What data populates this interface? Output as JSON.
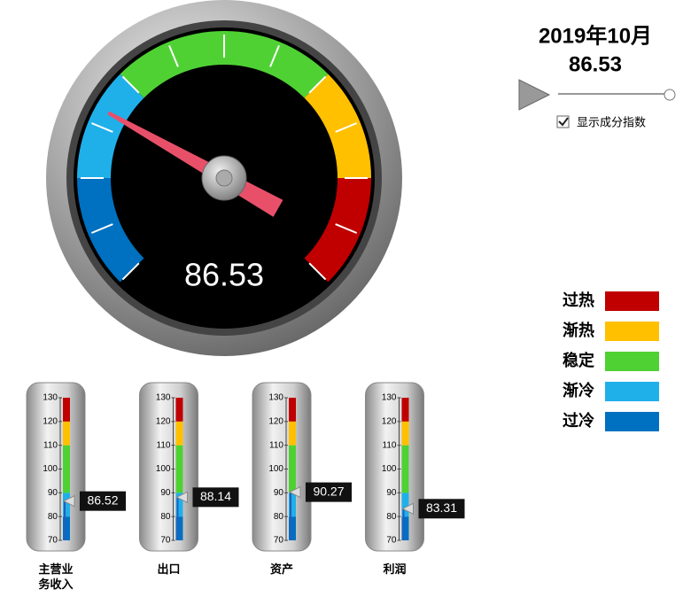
{
  "date": "2019年10月",
  "show_components": true,
  "checkbox_label": "显示成分指数",
  "gauge": {
    "value": 86.53,
    "min": 70,
    "max": 130,
    "ticks": [
      70,
      75,
      80,
      85,
      90,
      95,
      100,
      105,
      110,
      115,
      120,
      125,
      130
    ],
    "bands": [
      {
        "name": "过冷",
        "color": "#0070c0",
        "from": 70,
        "to": 80
      },
      {
        "name": "渐冷",
        "color": "#1fb0ea",
        "from": 80,
        "to": 90
      },
      {
        "name": "稳定",
        "color": "#4fd134",
        "from": 90,
        "to": 110
      },
      {
        "name": "渐热",
        "color": "#ffc000",
        "from": 110,
        "to": 120
      },
      {
        "name": "过热",
        "color": "#c00000",
        "from": 120,
        "to": 130
      }
    ]
  },
  "thermometers": {
    "ticks": [
      70,
      80,
      90,
      100,
      110,
      120,
      130
    ],
    "items": [
      {
        "name": "主营业务收入",
        "value": 86.52
      },
      {
        "name": "出口",
        "value": 88.14
      },
      {
        "name": "资产",
        "value": 90.27
      },
      {
        "name": "利润",
        "value": 83.31
      }
    ]
  }
}
